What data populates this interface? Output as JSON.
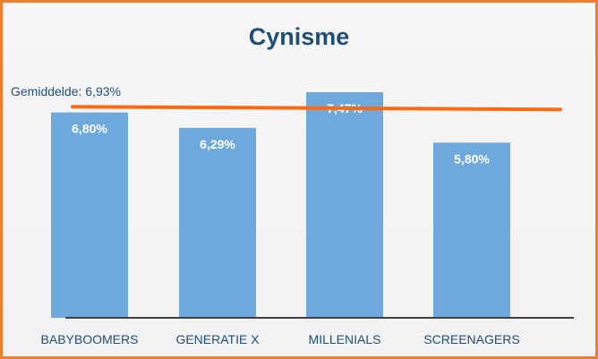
{
  "chart_data": {
    "type": "bar",
    "title": "Cynisme",
    "categories": [
      "BABYBOOMERS",
      "GENERATIE X",
      "MILLENIALS",
      "SCREENAGERS"
    ],
    "values": [
      6.8,
      6.29,
      7.47,
      5.8
    ],
    "value_labels": [
      "6,80%",
      "6,29%",
      "7,47%",
      "5,80%"
    ],
    "ylim": [
      0,
      8.3
    ],
    "average": {
      "value": 6.93,
      "label": "Gemiddelde: 6,93%"
    },
    "grid": false,
    "legend": "none"
  },
  "colors": {
    "bar": "#6FA8DC",
    "average_line": "#FF6A13",
    "frame_border": "#ED7D31",
    "title": "#1F4E79",
    "label": "#1F4E79",
    "axis": "#404040",
    "value_label": "#FFFFFF"
  }
}
